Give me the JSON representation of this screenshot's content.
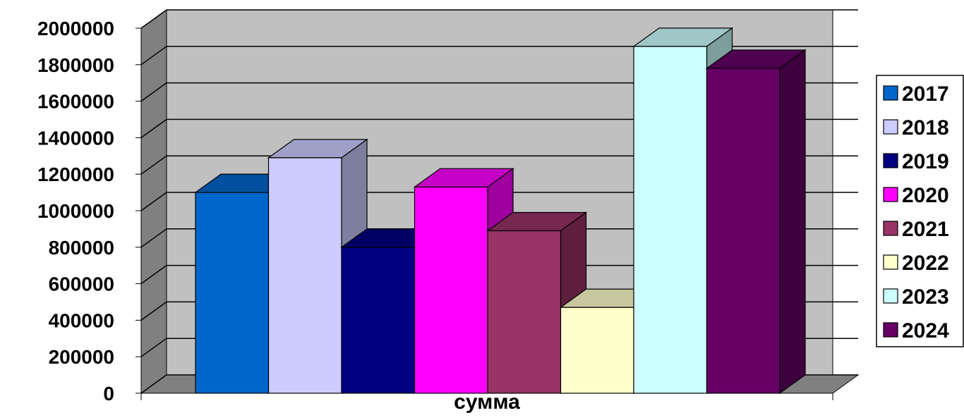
{
  "chart_data": {
    "type": "bar",
    "title": "",
    "xlabel": "сумма",
    "ylabel": "",
    "categories": [
      "сумма"
    ],
    "ylim": [
      0,
      2000000
    ],
    "yticks": [
      0,
      200000,
      400000,
      600000,
      800000,
      1000000,
      1200000,
      1400000,
      1600000,
      1800000,
      2000000
    ],
    "ytick_labels": [
      "0",
      "200000",
      "400000",
      "600000",
      "800000",
      "1000000",
      "1200000",
      "1400000",
      "1600000",
      "1800000",
      "2000000"
    ],
    "grid": true,
    "legend_position": "right",
    "series": [
      {
        "name": "2017",
        "values": [
          1100000
        ],
        "color": "#0066CC"
      },
      {
        "name": "2018",
        "values": [
          1290000
        ],
        "color": "#CCCCFF"
      },
      {
        "name": "2019",
        "values": [
          800000
        ],
        "color": "#000080"
      },
      {
        "name": "2020",
        "values": [
          1130000
        ],
        "color": "#FF00FF"
      },
      {
        "name": "2021",
        "values": [
          890000
        ],
        "color": "#993366"
      },
      {
        "name": "2022",
        "values": [
          470000
        ],
        "color": "#FFFFCC"
      },
      {
        "name": "2023",
        "values": [
          1900000
        ],
        "color": "#CCFFFF"
      },
      {
        "name": "2024",
        "values": [
          1780000
        ],
        "color": "#660066"
      }
    ]
  }
}
